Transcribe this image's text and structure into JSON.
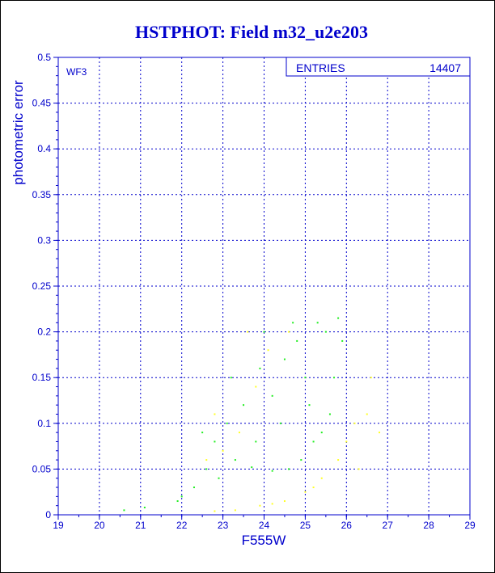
{
  "chart_data": {
    "type": "scatter",
    "title": "HSTPHOT: Field m32_u2e203",
    "xlabel": "F555W",
    "ylabel": "photometric error",
    "xlim": [
      19,
      29
    ],
    "ylim": [
      0,
      0.5
    ],
    "xticks": [
      "19",
      "20",
      "21",
      "22",
      "23",
      "24",
      "25",
      "26",
      "27",
      "28",
      "29"
    ],
    "yticks": [
      "0",
      "0.05",
      "0.1",
      "0.15",
      "0.2",
      "0.25",
      "0.3",
      "0.35",
      "0.4",
      "0.45",
      "0.5"
    ],
    "grid": true,
    "panel_label": "WF3",
    "stats": {
      "label": "ENTRIES",
      "value": "14407"
    },
    "colors": {
      "frame": "#0000cc",
      "title": "#0000cc",
      "primary": "#22ee22",
      "secondary": "#ffff22"
    },
    "series": [
      {
        "color": "#22ee22",
        "points": [
          [
            24.9,
            0.06
          ],
          [
            25.4,
            0.09
          ],
          [
            25.6,
            0.11
          ],
          [
            24.2,
            0.13
          ],
          [
            23.8,
            0.08
          ],
          [
            23.3,
            0.06
          ],
          [
            22.9,
            0.04
          ],
          [
            24.5,
            0.17
          ],
          [
            25.0,
            0.15
          ],
          [
            25.5,
            0.2
          ],
          [
            24.0,
            0.2
          ],
          [
            23.1,
            0.1
          ],
          [
            22.6,
            0.05
          ],
          [
            22.3,
            0.03
          ],
          [
            22.0,
            0.02
          ],
          [
            21.9,
            0.015
          ],
          [
            24.7,
            0.21
          ],
          [
            25.3,
            0.21
          ],
          [
            25.8,
            0.215
          ],
          [
            25.9,
            0.19
          ],
          [
            25.7,
            0.15
          ],
          [
            24.6,
            0.05
          ],
          [
            24.2,
            0.048
          ],
          [
            23.7,
            0.052
          ],
          [
            23.5,
            0.12
          ],
          [
            23.2,
            0.15
          ],
          [
            22.8,
            0.08
          ],
          [
            24.4,
            0.1
          ],
          [
            25.1,
            0.12
          ],
          [
            25.2,
            0.08
          ],
          [
            23.9,
            0.16
          ],
          [
            24.8,
            0.19
          ],
          [
            22.5,
            0.09
          ],
          [
            21.1,
            0.008
          ],
          [
            20.6,
            0.005
          ]
        ]
      },
      {
        "color": "#ffff22",
        "points": [
          [
            23.4,
            0.09
          ],
          [
            23.8,
            0.14
          ],
          [
            23.0,
            0.07
          ],
          [
            22.8,
            0.11
          ],
          [
            24.1,
            0.18
          ],
          [
            23.6,
            0.2
          ],
          [
            22.6,
            0.06
          ],
          [
            24.6,
            0.2
          ],
          [
            23.9,
            0.01
          ],
          [
            24.5,
            0.015
          ],
          [
            25.0,
            0.025
          ],
          [
            25.4,
            0.04
          ],
          [
            25.8,
            0.06
          ],
          [
            26.0,
            0.08
          ],
          [
            26.2,
            0.1
          ],
          [
            26.5,
            0.11
          ],
          [
            26.6,
            0.15
          ],
          [
            26.3,
            0.05
          ],
          [
            25.2,
            0.03
          ],
          [
            24.2,
            0.012
          ],
          [
            23.3,
            0.005
          ],
          [
            22.8,
            0.004
          ],
          [
            26.8,
            0.09
          ]
        ]
      }
    ]
  }
}
